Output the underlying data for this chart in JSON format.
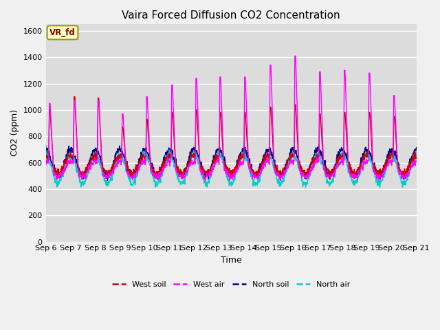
{
  "title": "Vaira Forced Diffusion CO2 Concentration",
  "xlabel": "Time",
  "ylabel": "CO2 (ppm)",
  "ylim": [
    0,
    1650
  ],
  "yticks": [
    0,
    200,
    400,
    600,
    800,
    1000,
    1200,
    1400,
    1600
  ],
  "legend_label": "VR_fd",
  "series_labels": [
    "West soil",
    "West air",
    "North soil",
    "North air"
  ],
  "series_colors": [
    "#cc0000",
    "#ff00ff",
    "#00008b",
    "#00cccc"
  ],
  "plot_bg_color": "#dcdcdc",
  "fig_bg_color": "#f0f0f0",
  "grid_color": "#ffffff",
  "title_fontsize": 11,
  "axis_fontsize": 9,
  "tick_fontsize": 8,
  "legend_fontsize": 8,
  "n_days": 15,
  "start_day": 6,
  "points_per_day": 96
}
